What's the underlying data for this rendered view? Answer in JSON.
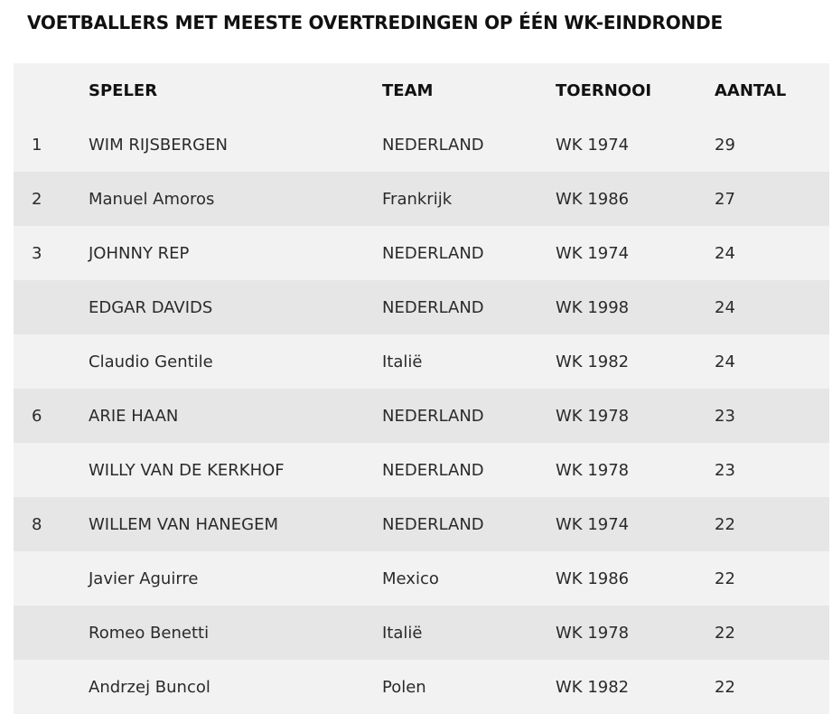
{
  "title": "VOETBALLERS MET MEESTE OVERTREDINGEN OP ÉÉN WK-EINDRONDE",
  "columns": {
    "rank": "",
    "player": "SPELER",
    "team": "TEAM",
    "tournament": "TOERNOOI",
    "count": "AANTAL"
  },
  "rows": [
    {
      "rank": "1",
      "player": "WIM RIJSBERGEN",
      "team": "NEDERLAND",
      "tournament": "WK 1974",
      "count": "29"
    },
    {
      "rank": "2",
      "player": "Manuel Amoros",
      "team": "Frankrijk",
      "tournament": "WK 1986",
      "count": "27"
    },
    {
      "rank": "3",
      "player": "JOHNNY REP",
      "team": "NEDERLAND",
      "tournament": "WK 1974",
      "count": "24"
    },
    {
      "rank": "",
      "player": "EDGAR DAVIDS",
      "team": "NEDERLAND",
      "tournament": "WK 1998",
      "count": "24"
    },
    {
      "rank": "",
      "player": "Claudio Gentile",
      "team": "Italië",
      "tournament": "WK 1982",
      "count": "24"
    },
    {
      "rank": "6",
      "player": "ARIE HAAN",
      "team": "NEDERLAND",
      "tournament": "WK 1978",
      "count": "23"
    },
    {
      "rank": "",
      "player": "WILLY VAN DE KERKHOF",
      "team": "NEDERLAND",
      "tournament": "WK 1978",
      "count": "23"
    },
    {
      "rank": "8",
      "player": "WILLEM VAN HANEGEM",
      "team": "NEDERLAND",
      "tournament": "WK 1974",
      "count": "22"
    },
    {
      "rank": "",
      "player": "Javier Aguirre",
      "team": "Mexico",
      "tournament": "WK 1986",
      "count": "22"
    },
    {
      "rank": "",
      "player": "Romeo Benetti",
      "team": "Italië",
      "tournament": "WK 1978",
      "count": "22"
    },
    {
      "rank": "",
      "player": "Andrzej Buncol",
      "team": "Polen",
      "tournament": "WK 1982",
      "count": "22"
    }
  ]
}
